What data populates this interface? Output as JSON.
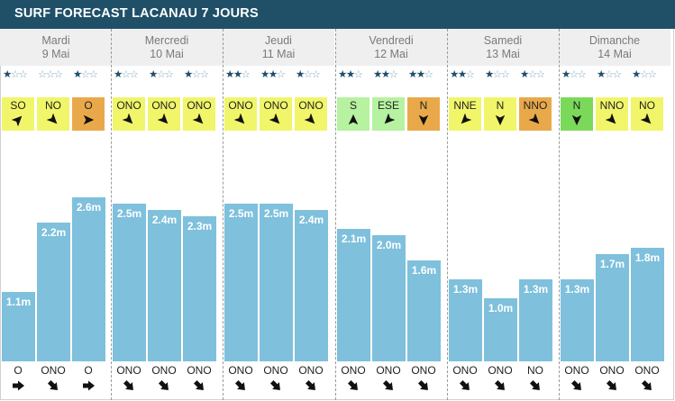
{
  "title": "SURF FORECAST LACANAU 7 JOURS",
  "colors": {
    "header": "#1f5068",
    "bar": "#7fc0dc",
    "yellow": "#f1f56a",
    "orange": "#e9a94a",
    "lightgreen": "#b6f2a0",
    "green": "#7bd95a"
  },
  "days": [
    {
      "name": "Mardi",
      "date": "9 Mai",
      "slots": [
        {
          "stars": 1,
          "wind": "SO",
          "wind_color": "yellow",
          "wind_icon": "arrow-up-right-icon",
          "height": 1.1,
          "height_label": "1.1m",
          "swell_dir": "O",
          "swell_icon": "arrow-right-icon"
        },
        {
          "stars": 0,
          "wind": "NO",
          "wind_color": "yellow",
          "wind_icon": "arrow-down-right-icon",
          "height": 2.2,
          "height_label": "2.2m",
          "swell_dir": "ONO",
          "swell_icon": "arrow-down-right-icon"
        },
        {
          "stars": 1,
          "wind": "O",
          "wind_color": "orange",
          "wind_icon": "arrow-right-icon",
          "height": 2.6,
          "height_label": "2.6m",
          "swell_dir": "O",
          "swell_icon": "arrow-right-icon"
        }
      ]
    },
    {
      "name": "Mercredi",
      "date": "10 Mai",
      "slots": [
        {
          "stars": 1,
          "wind": "ONO",
          "wind_color": "yellow",
          "wind_icon": "arrow-down-right-icon",
          "height": 2.5,
          "height_label": "2.5m",
          "swell_dir": "ONO",
          "swell_icon": "arrow-down-right-icon"
        },
        {
          "stars": 1,
          "wind": "ONO",
          "wind_color": "yellow",
          "wind_icon": "arrow-down-right-icon",
          "height": 2.4,
          "height_label": "2.4m",
          "swell_dir": "ONO",
          "swell_icon": "arrow-down-right-icon"
        },
        {
          "stars": 1,
          "wind": "ONO",
          "wind_color": "yellow",
          "wind_icon": "arrow-down-right-icon",
          "height": 2.3,
          "height_label": "2.3m",
          "swell_dir": "ONO",
          "swell_icon": "arrow-down-right-icon"
        }
      ]
    },
    {
      "name": "Jeudi",
      "date": "11 Mai",
      "slots": [
        {
          "stars": 2,
          "wind": "ONO",
          "wind_color": "yellow",
          "wind_icon": "arrow-down-right-icon",
          "height": 2.5,
          "height_label": "2.5m",
          "swell_dir": "ONO",
          "swell_icon": "arrow-down-right-icon"
        },
        {
          "stars": 2,
          "wind": "ONO",
          "wind_color": "yellow",
          "wind_icon": "arrow-down-right-icon",
          "height": 2.5,
          "height_label": "2.5m",
          "swell_dir": "ONO",
          "swell_icon": "arrow-down-right-icon"
        },
        {
          "stars": 1,
          "wind": "ONO",
          "wind_color": "yellow",
          "wind_icon": "arrow-down-right-icon",
          "height": 2.4,
          "height_label": "2.4m",
          "swell_dir": "ONO",
          "swell_icon": "arrow-down-right-icon"
        }
      ]
    },
    {
      "name": "Vendredi",
      "date": "12 Mai",
      "slots": [
        {
          "stars": 2,
          "wind": "S",
          "wind_color": "lightgreen",
          "wind_icon": "arrow-up-icon",
          "height": 2.1,
          "height_label": "2.1m",
          "swell_dir": "ONO",
          "swell_icon": "arrow-down-right-icon"
        },
        {
          "stars": 2,
          "wind": "ESE",
          "wind_color": "lightgreen",
          "wind_icon": "arrow-down-left-icon",
          "height": 2.0,
          "height_label": "2.0m",
          "swell_dir": "ONO",
          "swell_icon": "arrow-down-right-icon"
        },
        {
          "stars": 2,
          "wind": "N",
          "wind_color": "orange",
          "wind_icon": "arrow-down-icon",
          "height": 1.6,
          "height_label": "1.6m",
          "swell_dir": "ONO",
          "swell_icon": "arrow-down-right-icon"
        }
      ]
    },
    {
      "name": "Samedi",
      "date": "13 Mai",
      "slots": [
        {
          "stars": 2,
          "wind": "NNE",
          "wind_color": "yellow",
          "wind_icon": "arrow-down-left-icon",
          "height": 1.3,
          "height_label": "1.3m",
          "swell_dir": "ONO",
          "swell_icon": "arrow-down-right-icon"
        },
        {
          "stars": 1,
          "wind": "N",
          "wind_color": "yellow",
          "wind_icon": "arrow-down-icon",
          "height": 1.0,
          "height_label": "1.0m",
          "swell_dir": "ONO",
          "swell_icon": "arrow-down-right-icon"
        },
        {
          "stars": 1,
          "wind": "NNO",
          "wind_color": "orange",
          "wind_icon": "arrow-down-right-icon",
          "height": 1.3,
          "height_label": "1.3m",
          "swell_dir": "NO",
          "swell_icon": "arrow-down-right-icon"
        }
      ]
    },
    {
      "name": "Dimanche",
      "date": "14 Mai",
      "slots": [
        {
          "stars": 1,
          "wind": "N",
          "wind_color": "green",
          "wind_icon": "arrow-down-icon",
          "height": 1.3,
          "height_label": "1.3m",
          "swell_dir": "ONO",
          "swell_icon": "arrow-down-right-icon"
        },
        {
          "stars": 1,
          "wind": "NNO",
          "wind_color": "yellow",
          "wind_icon": "arrow-down-right-icon",
          "height": 1.7,
          "height_label": "1.7m",
          "swell_dir": "ONO",
          "swell_icon": "arrow-down-right-icon"
        },
        {
          "stars": 1,
          "wind": "NO",
          "wind_color": "yellow",
          "wind_icon": "arrow-down-right-icon",
          "height": 1.8,
          "height_label": "1.8m",
          "swell_dir": "ONO",
          "swell_icon": "arrow-down-right-icon"
        }
      ]
    }
  ]
}
